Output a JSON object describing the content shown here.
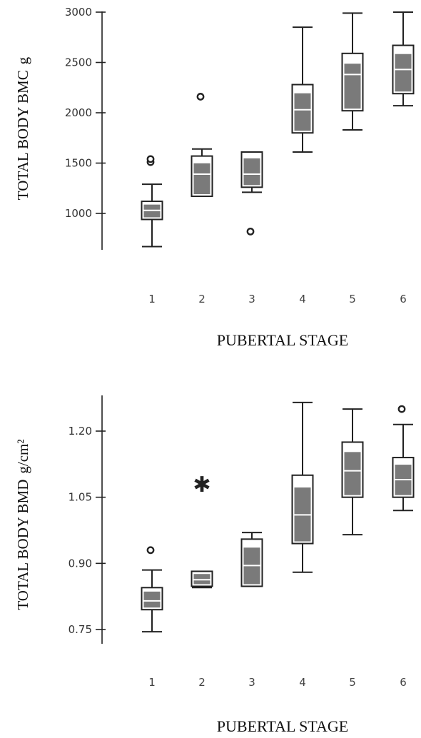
{
  "chart_data": [
    {
      "type": "box",
      "ylabel": "TOTAL BODY BMC",
      "yunit": "g",
      "xlabel": "PUBERTAL STAGE",
      "ylim": [
        650,
        3000
      ],
      "yticks": [
        "1000",
        "1500",
        "2000",
        "2500",
        "3000"
      ],
      "ytick_values": [
        1000,
        1500,
        2000,
        2500,
        3000
      ],
      "categories": [
        "1",
        "2",
        "3",
        "4",
        "5",
        "6"
      ],
      "boxes": [
        {
          "min": 670,
          "q1": 940,
          "median": 1030,
          "q3": 1120,
          "max": 1290,
          "outliers": [
            1510,
            1540
          ]
        },
        {
          "min": 1170,
          "q1": 1170,
          "median": 1390,
          "q3": 1570,
          "max": 1640,
          "outliers": [
            2160
          ]
        },
        {
          "min": 1210,
          "q1": 1260,
          "median": 1390,
          "q3": 1610,
          "max": 1610,
          "outliers": [
            820
          ]
        },
        {
          "min": 1610,
          "q1": 1800,
          "median": 2030,
          "q3": 2280,
          "max": 2850,
          "outliers": []
        },
        {
          "min": 1830,
          "q1": 2020,
          "median": 2380,
          "q3": 2590,
          "max": 2990,
          "outliers": []
        },
        {
          "min": 2070,
          "q1": 2190,
          "median": 2430,
          "q3": 2670,
          "max": 3000,
          "outliers": []
        }
      ]
    },
    {
      "type": "box",
      "ylabel": "TOTAL BODY BMD",
      "yunit": "g/cm²",
      "xlabel": "PUBERTAL STAGE",
      "ylim": [
        0.72,
        1.28
      ],
      "yticks": [
        "0.75",
        "0.90",
        "1.05",
        "1.20"
      ],
      "ytick_values": [
        0.75,
        0.9,
        1.05,
        1.2
      ],
      "categories": [
        "1",
        "2",
        "3",
        "4",
        "5",
        "6"
      ],
      "boxes": [
        {
          "min": 0.745,
          "q1": 0.795,
          "median": 0.815,
          "q3": 0.845,
          "max": 0.885,
          "outliers": [
            0.93
          ],
          "outlier_marker": "circle"
        },
        {
          "min": 0.845,
          "q1": 0.848,
          "median": 0.863,
          "q3": 0.882,
          "max": 0.882,
          "outliers": [
            1.08
          ],
          "outlier_marker": "star"
        },
        {
          "min": 0.848,
          "q1": 0.848,
          "median": 0.895,
          "q3": 0.955,
          "max": 0.97,
          "outliers": [],
          "outlier_marker": "circle"
        },
        {
          "min": 0.88,
          "q1": 0.945,
          "median": 1.01,
          "q3": 1.1,
          "max": 1.265,
          "outliers": [],
          "outlier_marker": "circle"
        },
        {
          "min": 0.965,
          "q1": 1.05,
          "median": 1.11,
          "q3": 1.175,
          "max": 1.25,
          "outliers": [],
          "outlier_marker": "circle"
        },
        {
          "min": 1.02,
          "q1": 1.05,
          "median": 1.09,
          "q3": 1.14,
          "max": 1.215,
          "outliers": [
            1.25
          ],
          "outlier_marker": "circle"
        }
      ]
    }
  ]
}
